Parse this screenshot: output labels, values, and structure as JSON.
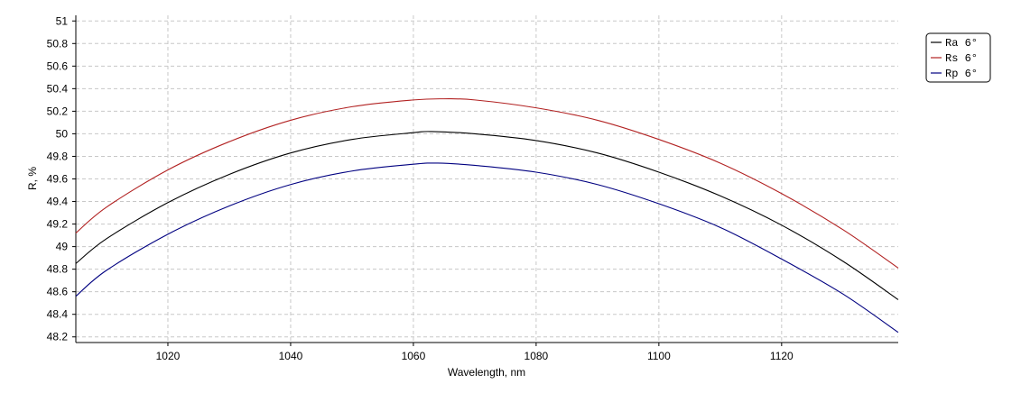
{
  "chart_data": {
    "type": "line",
    "title": "",
    "xlabel": "Wavelength, nm",
    "ylabel": "R, %",
    "xlim": [
      1005,
      1139
    ],
    "ylim": [
      48.15,
      51.05
    ],
    "x_ticks": [
      1020,
      1040,
      1060,
      1080,
      1100,
      1120
    ],
    "x_tick_labels": [
      "1020",
      "1040",
      "1060",
      "1080",
      "1100",
      "1120"
    ],
    "y_ticks": [
      48.2,
      48.4,
      48.6,
      48.8,
      49,
      49.2,
      49.4,
      49.6,
      49.8,
      50,
      50.2,
      50.4,
      50.6,
      50.8,
      51
    ],
    "y_tick_labels": [
      "48.2",
      "48.4",
      "48.6",
      "48.8",
      "49",
      "49.2",
      "49.4",
      "49.6",
      "49.8",
      "50",
      "50.2",
      "50.4",
      "50.6",
      "50.8",
      "51"
    ],
    "grid": true,
    "legend_position": "right",
    "series": [
      {
        "name": "Ra 6°",
        "color": "#000000",
        "x": [
          1005,
          1010,
          1020,
          1030,
          1040,
          1050,
          1060,
          1063,
          1070,
          1080,
          1090,
          1100,
          1110,
          1120,
          1130,
          1139
        ],
        "y": [
          48.85,
          49.07,
          49.39,
          49.64,
          49.83,
          49.95,
          50.01,
          50.02,
          50.0,
          49.94,
          49.83,
          49.66,
          49.45,
          49.19,
          48.87,
          48.53
        ]
      },
      {
        "name": "Rs 6°",
        "color": "#b22222",
        "x": [
          1005,
          1010,
          1020,
          1030,
          1040,
          1050,
          1060,
          1065,
          1070,
          1080,
          1090,
          1100,
          1110,
          1120,
          1130,
          1139
        ],
        "y": [
          49.12,
          49.35,
          49.68,
          49.93,
          50.12,
          50.24,
          50.3,
          50.31,
          50.3,
          50.23,
          50.12,
          49.95,
          49.74,
          49.47,
          49.15,
          48.81
        ]
      },
      {
        "name": "Rp 6°",
        "color": "#000080",
        "x": [
          1005,
          1010,
          1020,
          1030,
          1040,
          1050,
          1060,
          1064,
          1070,
          1080,
          1090,
          1100,
          1110,
          1120,
          1130,
          1139
        ],
        "y": [
          48.56,
          48.79,
          49.11,
          49.36,
          49.55,
          49.67,
          49.73,
          49.74,
          49.72,
          49.66,
          49.55,
          49.38,
          49.17,
          48.89,
          48.58,
          48.24
        ]
      }
    ]
  }
}
